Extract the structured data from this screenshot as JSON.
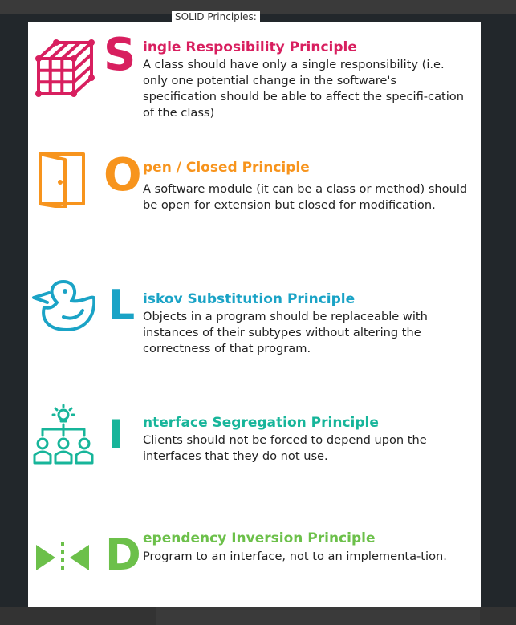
{
  "document": {
    "title": "SOLID Principles:"
  },
  "principles": [
    {
      "letter": "S",
      "heading": "ingle Resposibility Principle",
      "description": "A class should have only a single responsibility (i.e. only one potential change in the software's specification should be able to affect the specifi-cation of the class)",
      "color": "#d81f5f",
      "icon": "cube-icon"
    },
    {
      "letter": "O",
      "heading": "pen / Closed Principle",
      "description": "A software module (it can be a class or method) should be open for extension but closed for modification.",
      "color": "#f7941d",
      "icon": "door-icon"
    },
    {
      "letter": "L",
      "heading": "iskov Substitution Principle",
      "description": "Objects in a program should be replaceable with instances of their subtypes without altering the correctness of that program.",
      "color": "#1aa3c6",
      "icon": "duck-icon"
    },
    {
      "letter": "I",
      "heading": "nterface Segregation Principle",
      "description": "Clients should not be forced to depend upon the interfaces that they do not use.",
      "color": "#17b59a",
      "icon": "people-idea-icon"
    },
    {
      "letter": "D",
      "heading": "ependency Inversion Principle",
      "description": "Program to an interface, not to an implementa-tion.",
      "color": "#6cc04a",
      "icon": "arrows-inward-icon"
    }
  ]
}
